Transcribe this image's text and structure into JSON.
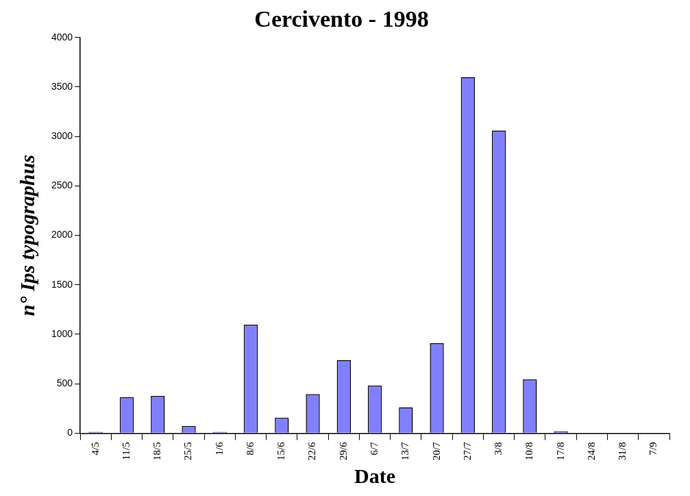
{
  "chart_data": {
    "type": "bar",
    "title": "Cercivento - 1998",
    "xlabel": "Date",
    "ylabel": "n° Ips typographus",
    "categories": [
      "4/5",
      "11/5",
      "18/5",
      "25/5",
      "1/6",
      "8/6",
      "15/6",
      "22/6",
      "29/6",
      "6/7",
      "13/7",
      "20/7",
      "27/7",
      "3/8",
      "10/8",
      "17/8",
      "24/8",
      "31/8",
      "7/9"
    ],
    "values": [
      12,
      364,
      376,
      74,
      12,
      1097,
      157,
      396,
      740,
      482,
      262,
      909,
      3600,
      3060,
      544,
      20,
      0,
      0,
      0
    ],
    "color": "#8080ff",
    "ylim": [
      0,
      4000
    ],
    "yticks": [
      0,
      500,
      1000,
      1500,
      2000,
      2500,
      3000,
      3500,
      4000
    ],
    "grid": false,
    "legend": false
  }
}
